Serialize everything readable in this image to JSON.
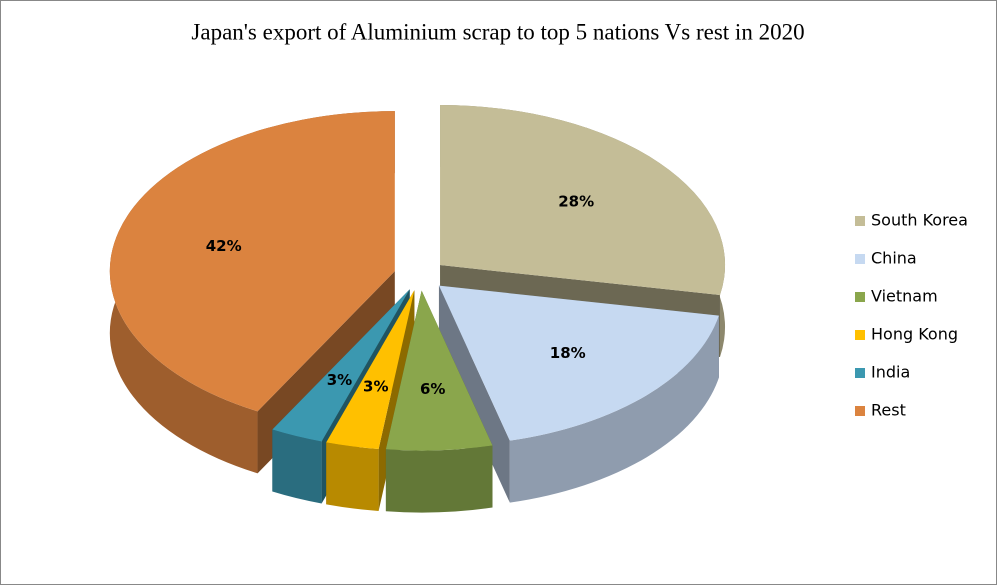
{
  "chart_data": {
    "type": "pie",
    "title": "Japan's export of Aluminium scrap to top 5 nations Vs rest in 2020",
    "categories": [
      "South Korea",
      "China",
      "Vietnam",
      "Hong Kong",
      "India",
      "Rest"
    ],
    "values": [
      28,
      18,
      6,
      3,
      3,
      42
    ],
    "value_labels": [
      "28%",
      "18%",
      "6%",
      "3%",
      "3%",
      "42%"
    ],
    "colors": [
      "#c4bd97",
      "#c6d9f1",
      "#8aa64c",
      "#ffc000",
      "#3b98b0",
      "#db833f"
    ],
    "legend": "right"
  }
}
